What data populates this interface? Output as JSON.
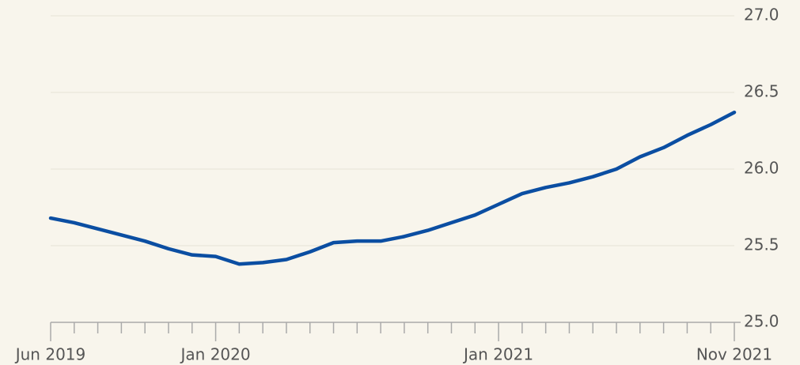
{
  "chart_data": {
    "type": "line",
    "categories": [
      "Jun 2019",
      null,
      null,
      null,
      null,
      null,
      null,
      "Jan 2020",
      null,
      null,
      null,
      null,
      null,
      null,
      null,
      null,
      null,
      null,
      null,
      "Jan 2021",
      null,
      null,
      null,
      null,
      null,
      null,
      null,
      null,
      null,
      "Nov 2021"
    ],
    "series": [
      {
        "name": null,
        "color": "#0b4ea2",
        "values": [
          25.68,
          25.65,
          25.61,
          25.57,
          25.53,
          25.48,
          25.44,
          25.43,
          25.38,
          25.39,
          25.41,
          25.46,
          25.52,
          25.53,
          25.53,
          25.56,
          25.6,
          25.65,
          25.7,
          25.77,
          25.84,
          25.88,
          25.91,
          25.95,
          26.0,
          26.08,
          26.14,
          26.22,
          26.29,
          26.37
        ]
      }
    ],
    "ylim": [
      25.0,
      27.0
    ],
    "yticks": [
      {
        "value": 25.0,
        "label": "25.0"
      },
      {
        "value": 25.5,
        "label": "25.5"
      },
      {
        "value": 26.0,
        "label": "26.0"
      },
      {
        "value": 26.5,
        "label": "26.5"
      },
      {
        "value": 27.0,
        "label": "27.0"
      }
    ],
    "grid": true
  }
}
